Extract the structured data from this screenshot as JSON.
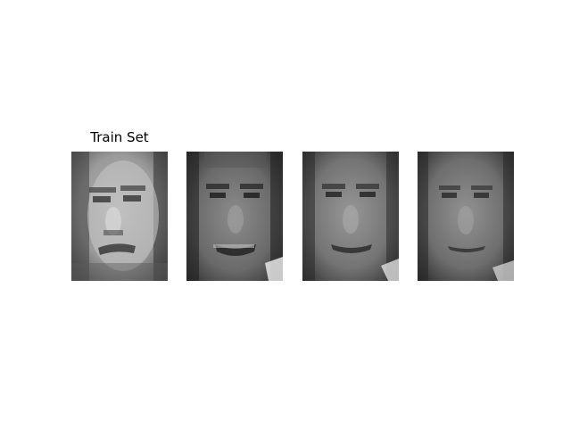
{
  "figure": {
    "title": "Train Set"
  },
  "panels": [
    {
      "image": "face-photo-1",
      "tone": "#8a8a8a"
    },
    {
      "image": "face-photo-2",
      "tone": "#6e6e6e"
    },
    {
      "image": "face-photo-3",
      "tone": "#757575"
    },
    {
      "image": "face-photo-4",
      "tone": "#6a6a6a"
    }
  ]
}
